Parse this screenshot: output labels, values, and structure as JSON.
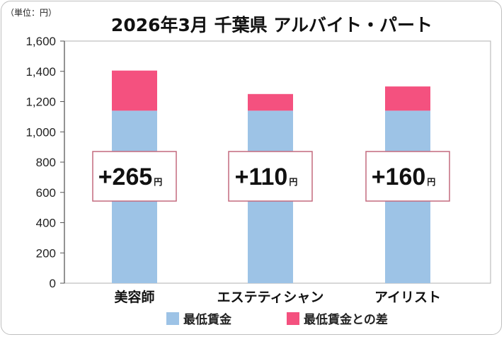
{
  "chart_data": {
    "type": "bar",
    "stacked": true,
    "title": "2026年3月 千葉県 アルバイト・パート",
    "unit_label": "（単位：円）",
    "categories": [
      "美容師",
      "エステティシャン",
      "アイリスト"
    ],
    "series": [
      {
        "name": "最低賃金",
        "values": [
          1140,
          1140,
          1140
        ],
        "color": "#9dc3e6"
      },
      {
        "name": "最低賃金との差",
        "values": [
          265,
          110,
          160
        ],
        "color": "#f4517f"
      }
    ],
    "labels": [
      {
        "sign": "+",
        "value": "265",
        "unit": "円"
      },
      {
        "sign": "+",
        "value": "110",
        "unit": "円"
      },
      {
        "sign": "+",
        "value": "160",
        "unit": "円"
      }
    ],
    "ylim": [
      0,
      1600
    ],
    "yticks": [
      "0",
      "200",
      "400",
      "600",
      "800",
      "1,000",
      "1,200",
      "1,400",
      "1,600"
    ],
    "ytick_values": [
      0,
      200,
      400,
      600,
      800,
      1000,
      1200,
      1400,
      1600
    ],
    "grid": false,
    "legend_position": "bottom-center"
  }
}
